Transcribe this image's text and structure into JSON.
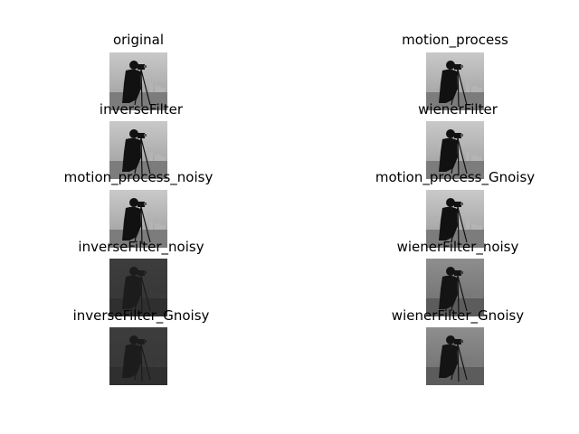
{
  "figure": {
    "panels": [
      {
        "title": "original",
        "tone": "normal"
      },
      {
        "title": "motion_process",
        "tone": "normal"
      },
      {
        "title": "inverseFilter",
        "tone": "normal"
      },
      {
        "title": "wienerFilter",
        "tone": "normal"
      },
      {
        "title": "motion_process_noisy",
        "tone": "normal"
      },
      {
        "title": "motion_process_Gnoisy",
        "tone": "normal"
      },
      {
        "title": "inverseFilter_noisy",
        "tone": "dark"
      },
      {
        "title": "wienerFilter_noisy",
        "tone": "medium"
      },
      {
        "title": "inverseFilter_Gnoisy",
        "tone": "dark"
      },
      {
        "title": "wienerFilter_Gnoisy",
        "tone": "medium"
      }
    ]
  },
  "colors": {
    "background": "#ffffff",
    "title_text": "#000000"
  }
}
